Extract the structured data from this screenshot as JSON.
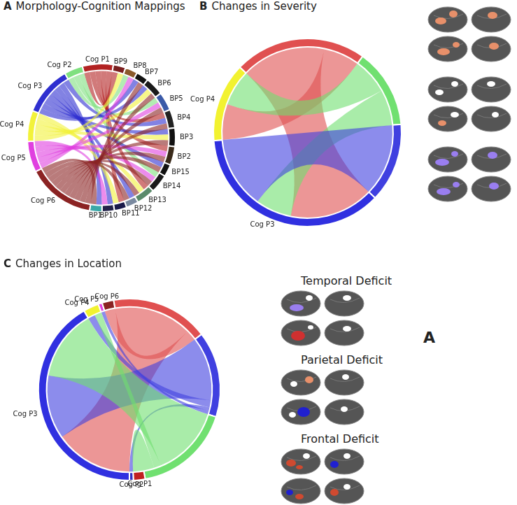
{
  "chart_data": [
    {
      "type": "chord",
      "letter": "A",
      "title": "Morphology-Cognition Mappings",
      "sectors": [
        {
          "label": "Cog P1",
          "value": 5,
          "color": "#b22222"
        },
        {
          "label": "BP9",
          "value": 2,
          "color": "#7a1f1f"
        },
        {
          "label": "BP8",
          "value": 2,
          "color": "#8b5a2b"
        },
        {
          "label": "BP7",
          "value": 2,
          "color": "#111111"
        },
        {
          "label": "BP6",
          "value": 3,
          "color": "#1a1a1a"
        },
        {
          "label": "BP5",
          "value": 3,
          "color": "#3b5aa8"
        },
        {
          "label": "BP4",
          "value": 3,
          "color": "#222222"
        },
        {
          "label": "BP3",
          "value": 3,
          "color": "#111111"
        },
        {
          "label": "BP2",
          "value": 3,
          "color": "#3a2a1a"
        },
        {
          "label": "BP15",
          "value": 2,
          "color": "#111111"
        },
        {
          "label": "BP14",
          "value": 3,
          "color": "#1a1a1a"
        },
        {
          "label": "BP13",
          "value": 3,
          "color": "#5a8a6a"
        },
        {
          "label": "BP12",
          "value": 2,
          "color": "#7a8aa0"
        },
        {
          "label": "BP11",
          "value": 2,
          "color": "#1a1a4a"
        },
        {
          "label": "BP10",
          "value": 2,
          "color": "#22224a"
        },
        {
          "label": "BP1",
          "value": 2,
          "color": "#3aa8a8"
        },
        {
          "label": "Cog P6",
          "value": 11,
          "color": "#8b2323"
        },
        {
          "label": "Cog P5",
          "value": 5,
          "color": "#e040e0"
        },
        {
          "label": "Cog P4",
          "value": 5,
          "color": "#f2f23a"
        },
        {
          "label": "Cog P3",
          "value": 8,
          "color": "#2f2fd0"
        },
        {
          "label": "Cog P2",
          "value": 3,
          "color": "#7fe07f"
        }
      ],
      "chords": [
        {
          "from": "Cog P1",
          "to": "BP9",
          "value": 1
        },
        {
          "from": "Cog P1",
          "to": "BP4",
          "value": 1
        },
        {
          "from": "Cog P1",
          "to": "BP2",
          "value": 1
        },
        {
          "from": "Cog P1",
          "to": "BP13",
          "value": 1
        },
        {
          "from": "Cog P1",
          "to": "BP11",
          "value": 1
        },
        {
          "from": "Cog P2",
          "to": "BP8",
          "value": 1
        },
        {
          "from": "Cog P2",
          "to": "BP5",
          "value": 1
        },
        {
          "from": "Cog P2",
          "to": "BP14",
          "value": 1
        },
        {
          "from": "Cog P3",
          "to": "BP7",
          "value": 1
        },
        {
          "from": "Cog P3",
          "to": "BP6",
          "value": 1
        },
        {
          "from": "Cog P3",
          "to": "BP3",
          "value": 1
        },
        {
          "from": "Cog P3",
          "to": "BP15",
          "value": 1
        },
        {
          "from": "Cog P3",
          "to": "BP12",
          "value": 1
        },
        {
          "from": "Cog P3",
          "to": "BP10",
          "value": 1
        },
        {
          "from": "Cog P3",
          "to": "BP1",
          "value": 1
        },
        {
          "from": "Cog P3",
          "to": "BP4",
          "value": 1
        },
        {
          "from": "Cog P4",
          "to": "BP9",
          "value": 1
        },
        {
          "from": "Cog P4",
          "to": "BP6",
          "value": 1
        },
        {
          "from": "Cog P4",
          "to": "BP3",
          "value": 1
        },
        {
          "from": "Cog P4",
          "to": "BP13",
          "value": 1
        },
        {
          "from": "Cog P4",
          "to": "BP11",
          "value": 1
        },
        {
          "from": "Cog P5",
          "to": "BP8",
          "value": 1
        },
        {
          "from": "Cog P5",
          "to": "BP5",
          "value": 1
        },
        {
          "from": "Cog P5",
          "to": "BP2",
          "value": 1
        },
        {
          "from": "Cog P5",
          "to": "BP14",
          "value": 1
        },
        {
          "from": "Cog P5",
          "to": "BP10",
          "value": 1
        },
        {
          "from": "Cog P6",
          "to": "BP7",
          "value": 1
        },
        {
          "from": "Cog P6",
          "to": "BP6",
          "value": 1
        },
        {
          "from": "Cog P6",
          "to": "BP5",
          "value": 1
        },
        {
          "from": "Cog P6",
          "to": "BP4",
          "value": 1
        },
        {
          "from": "Cog P6",
          "to": "BP3",
          "value": 1
        },
        {
          "from": "Cog P6",
          "to": "BP2",
          "value": 1
        },
        {
          "from": "Cog P6",
          "to": "BP15",
          "value": 1
        },
        {
          "from": "Cog P6",
          "to": "BP14",
          "value": 1
        },
        {
          "from": "Cog P6",
          "to": "BP13",
          "value": 1
        },
        {
          "from": "Cog P6",
          "to": "BP12",
          "value": 1
        },
        {
          "from": "Cog P6",
          "to": "BP1",
          "value": 1
        }
      ]
    },
    {
      "type": "chord",
      "letter": "B",
      "title": "Changes in Severity",
      "sectors": [
        {
          "label": "Cog P4",
          "value": 12,
          "color": "#f2f230"
        },
        {
          "label": null,
          "value": 20,
          "color": "#e05050"
        },
        {
          "label": null,
          "value": 12,
          "color": "#70e070"
        },
        {
          "label": null,
          "value": 12,
          "color": "#4040e0"
        },
        {
          "label": "Cog P3",
          "value": 32,
          "color": "#3030e0"
        }
      ],
      "chords": [
        {
          "from": 1,
          "to": 4,
          "value": 14
        },
        {
          "from": 1,
          "to": 0,
          "value": 6
        },
        {
          "from": 2,
          "to": 0,
          "value": 6
        },
        {
          "from": 2,
          "to": 4,
          "value": 6
        },
        {
          "from": 3,
          "to": 4,
          "value": 12
        }
      ]
    },
    {
      "type": "chord",
      "letter": "C",
      "title": "Changes in Location",
      "sectors": [
        {
          "label": "Cog P4",
          "value": 4,
          "color": "#f2f230"
        },
        {
          "label": "Cog P5",
          "value": 1,
          "color": "#e040e0"
        },
        {
          "label": "Cog P6",
          "value": 3,
          "color": "#8b2323"
        },
        {
          "label": null,
          "value": 25,
          "color": "#e05050"
        },
        {
          "label": null,
          "value": 22,
          "color": "#4040e0"
        },
        {
          "label": null,
          "value": 25,
          "color": "#70e070"
        },
        {
          "label": "Cog P1",
          "value": 3,
          "color": "#c02020"
        },
        {
          "label": "Cog P2",
          "value": 1,
          "color": "#3030c0"
        },
        {
          "label": "Cog P3",
          "value": 60,
          "color": "#3030e0"
        }
      ],
      "chords": [
        {
          "from": 3,
          "to": 8,
          "value": 22
        },
        {
          "from": 3,
          "to": 2,
          "value": 3
        },
        {
          "from": 4,
          "to": 8,
          "value": 18
        },
        {
          "from": 4,
          "to": 0,
          "value": 2
        },
        {
          "from": 4,
          "to": 7,
          "value": 1
        },
        {
          "from": 4,
          "to": 1,
          "value": 1
        },
        {
          "from": 5,
          "to": 8,
          "value": 20
        },
        {
          "from": 5,
          "to": 0,
          "value": 2
        },
        {
          "from": 5,
          "to": 6,
          "value": 3
        }
      ]
    }
  ],
  "brain_maps": {
    "B": [
      null,
      null,
      null
    ],
    "C": [
      "Temporal Deficit",
      "Parietal Deficit",
      "Frontal Deficit"
    ]
  },
  "side_letter": "A"
}
